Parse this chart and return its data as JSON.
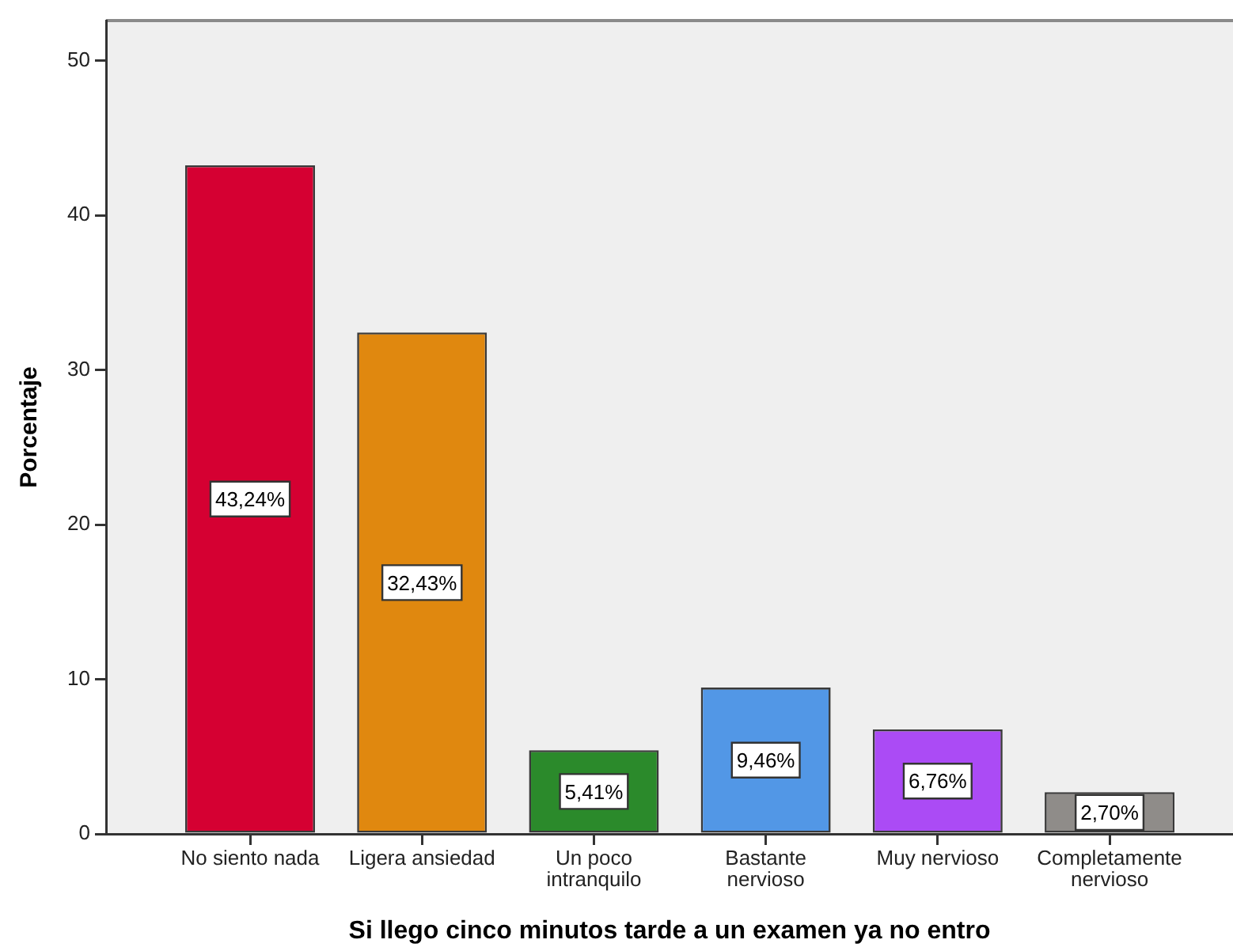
{
  "chart_data": {
    "type": "bar",
    "categories": [
      "No siento nada",
      "Ligera ansiedad",
      "Un poco intranquilo",
      "Bastante nervioso",
      "Muy nervioso",
      "Completamente nervioso"
    ],
    "values": [
      43.24,
      32.43,
      5.41,
      9.46,
      6.76,
      2.7
    ],
    "colors": [
      "#d50032",
      "#e0880f",
      "#2b8a2b",
      "#5297e6",
      "#ab4bf5",
      "#8f8c89"
    ],
    "value_labels": [
      "43,24%",
      "32,43%",
      "5,41%",
      "9,46%",
      "6,76%",
      "2,70%"
    ],
    "xlabel": "Si llego cinco minutos tarde a un examen ya no entro",
    "ylabel": "Porcentaje",
    "ylim": [
      0,
      52.6
    ],
    "yticks": [
      0,
      10,
      20,
      30,
      40,
      50
    ]
  }
}
